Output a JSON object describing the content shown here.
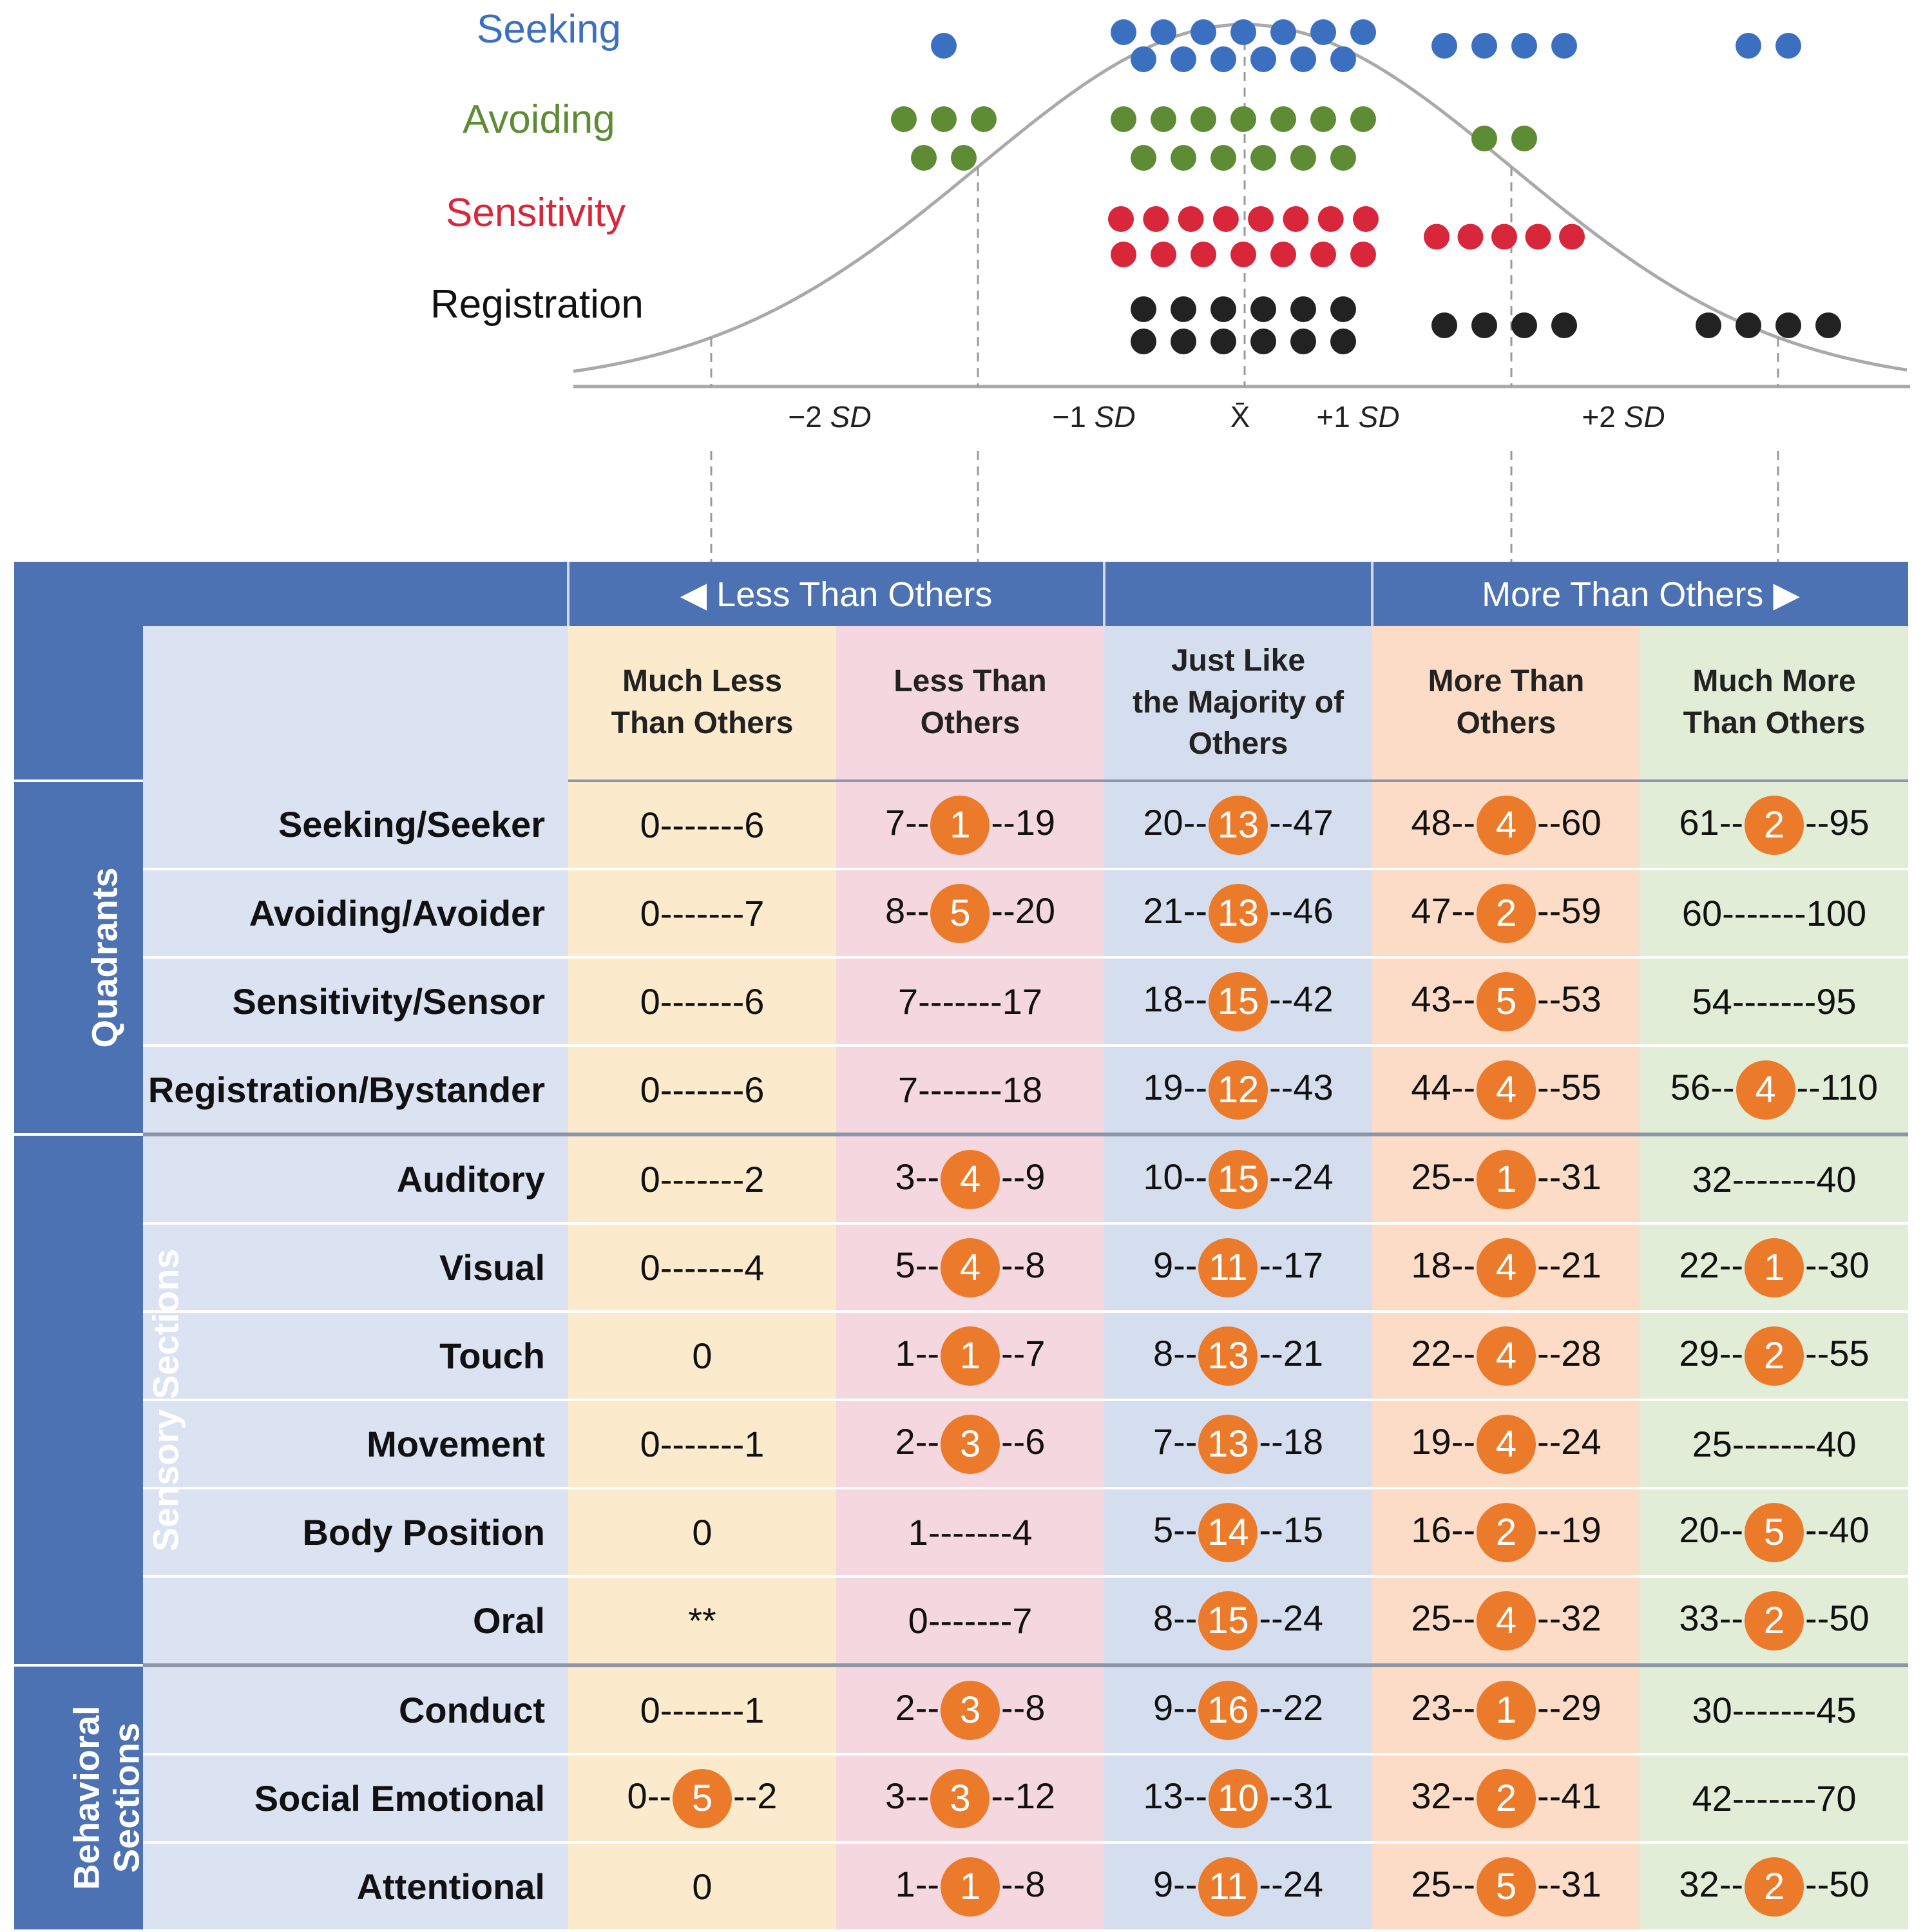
{
  "chart_data": [
    {
      "type": "scatter",
      "title": "",
      "xlabel": "",
      "x_ticks": [
        "−2 SD",
        "−1 SD",
        "X̄",
        "+1 SD",
        "+2 SD"
      ],
      "curve": "normal distribution",
      "series": [
        {
          "name": "Seeking",
          "color": "#3b6fc0",
          "dots_per_range": {
            "lt_minus2": 0,
            "minus2_minus1": 1,
            "minus1_plus1": 13,
            "plus1_plus2": 4,
            "gt_plus2": 2
          }
        },
        {
          "name": "Avoiding",
          "color": "#5e8c34",
          "dots_per_range": {
            "lt_minus2": 0,
            "minus2_minus1": 5,
            "minus1_plus1": 13,
            "plus1_plus2": 2,
            "gt_plus2": 0
          }
        },
        {
          "name": "Sensitivity",
          "color": "#d8263a",
          "dots_per_range": {
            "lt_minus2": 0,
            "minus2_minus1": 0,
            "minus1_plus1": 15,
            "plus1_plus2": 5,
            "gt_plus2": 0
          }
        },
        {
          "name": "Registration",
          "color": "#222222",
          "dots_per_range": {
            "lt_minus2": 0,
            "minus2_minus1": 0,
            "minus1_plus1": 12,
            "plus1_plus2": 4,
            "gt_plus2": 4
          }
        }
      ]
    },
    {
      "type": "table",
      "header_groups": {
        "left": "Less Than Others",
        "right": "More Than Others"
      },
      "columns": [
        "Much Less Than Others",
        "Less Than Others",
        "Just Like the Majority of Others",
        "More Than Others",
        "Much More Than Others"
      ],
      "groups": [
        {
          "name": "Quadrants",
          "rows": [
            {
              "label": "Seeking/Seeker",
              "cells": [
                {
                  "lo": "0",
                  "n": null,
                  "hi": "6"
                },
                {
                  "lo": "7",
                  "n": 1,
                  "hi": "19"
                },
                {
                  "lo": "20",
                  "n": 13,
                  "hi": "47"
                },
                {
                  "lo": "48",
                  "n": 4,
                  "hi": "60"
                },
                {
                  "lo": "61",
                  "n": 2,
                  "hi": "95"
                }
              ]
            },
            {
              "label": "Avoiding/Avoider",
              "cells": [
                {
                  "lo": "0",
                  "n": null,
                  "hi": "7"
                },
                {
                  "lo": "8",
                  "n": 5,
                  "hi": "20"
                },
                {
                  "lo": "21",
                  "n": 13,
                  "hi": "46"
                },
                {
                  "lo": "47",
                  "n": 2,
                  "hi": "59"
                },
                {
                  "lo": "60",
                  "n": null,
                  "hi": "100"
                }
              ]
            },
            {
              "label": "Sensitivity/Sensor",
              "cells": [
                {
                  "lo": "0",
                  "n": null,
                  "hi": "6"
                },
                {
                  "lo": "7",
                  "n": null,
                  "hi": "17"
                },
                {
                  "lo": "18",
                  "n": 15,
                  "hi": "42"
                },
                {
                  "lo": "43",
                  "n": 5,
                  "hi": "53"
                },
                {
                  "lo": "54",
                  "n": null,
                  "hi": "95"
                }
              ]
            },
            {
              "label": "Registration/Bystander",
              "cells": [
                {
                  "lo": "0",
                  "n": null,
                  "hi": "6"
                },
                {
                  "lo": "7",
                  "n": null,
                  "hi": "18"
                },
                {
                  "lo": "19",
                  "n": 12,
                  "hi": "43"
                },
                {
                  "lo": "44",
                  "n": 4,
                  "hi": "55"
                },
                {
                  "lo": "56",
                  "n": 4,
                  "hi": "110"
                }
              ]
            }
          ]
        },
        {
          "name": "Sensory Sections",
          "rows": [
            {
              "label": "Auditory",
              "cells": [
                {
                  "lo": "0",
                  "n": null,
                  "hi": "2"
                },
                {
                  "lo": "3",
                  "n": 4,
                  "hi": "9"
                },
                {
                  "lo": "10",
                  "n": 15,
                  "hi": "24"
                },
                {
                  "lo": "25",
                  "n": 1,
                  "hi": "31"
                },
                {
                  "lo": "32",
                  "n": null,
                  "hi": "40"
                }
              ]
            },
            {
              "label": "Visual",
              "cells": [
                {
                  "lo": "0",
                  "n": null,
                  "hi": "4"
                },
                {
                  "lo": "5",
                  "n": 4,
                  "hi": "8"
                },
                {
                  "lo": "9",
                  "n": 11,
                  "hi": "17"
                },
                {
                  "lo": "18",
                  "n": 4,
                  "hi": "21"
                },
                {
                  "lo": "22",
                  "n": 1,
                  "hi": "30"
                }
              ]
            },
            {
              "label": "Touch",
              "cells": [
                {
                  "single": "0"
                },
                {
                  "lo": "1",
                  "n": 1,
                  "hi": "7"
                },
                {
                  "lo": "8",
                  "n": 13,
                  "hi": "21"
                },
                {
                  "lo": "22",
                  "n": 4,
                  "hi": "28"
                },
                {
                  "lo": "29",
                  "n": 2,
                  "hi": "55"
                }
              ]
            },
            {
              "label": "Movement",
              "cells": [
                {
                  "lo": "0",
                  "n": null,
                  "hi": "1"
                },
                {
                  "lo": "2",
                  "n": 3,
                  "hi": "6"
                },
                {
                  "lo": "7",
                  "n": 13,
                  "hi": "18"
                },
                {
                  "lo": "19",
                  "n": 4,
                  "hi": "24"
                },
                {
                  "lo": "25",
                  "n": null,
                  "hi": "40"
                }
              ]
            },
            {
              "label": "Body Position",
              "cells": [
                {
                  "single": "0"
                },
                {
                  "lo": "1",
                  "n": null,
                  "hi": "4"
                },
                {
                  "lo": "5",
                  "n": 14,
                  "hi": "15"
                },
                {
                  "lo": "16",
                  "n": 2,
                  "hi": "19"
                },
                {
                  "lo": "20",
                  "n": 5,
                  "hi": "40"
                }
              ]
            },
            {
              "label": "Oral",
              "cells": [
                {
                  "single": "**"
                },
                {
                  "lo": "0",
                  "n": null,
                  "hi": "7"
                },
                {
                  "lo": "8",
                  "n": 15,
                  "hi": "24"
                },
                {
                  "lo": "25",
                  "n": 4,
                  "hi": "32"
                },
                {
                  "lo": "33",
                  "n": 2,
                  "hi": "50"
                }
              ]
            }
          ]
        },
        {
          "name": "Behavioral Sections",
          "rows": [
            {
              "label": "Conduct",
              "cells": [
                {
                  "lo": "0",
                  "n": null,
                  "hi": "1"
                },
                {
                  "lo": "2",
                  "n": 3,
                  "hi": "8"
                },
                {
                  "lo": "9",
                  "n": 16,
                  "hi": "22"
                },
                {
                  "lo": "23",
                  "n": 1,
                  "hi": "29"
                },
                {
                  "lo": "30",
                  "n": null,
                  "hi": "45"
                }
              ]
            },
            {
              "label": "Social Emotional",
              "cells": [
                {
                  "lo": "0",
                  "n": 5,
                  "hi": "2"
                },
                {
                  "lo": "3",
                  "n": 3,
                  "hi": "12"
                },
                {
                  "lo": "13",
                  "n": 10,
                  "hi": "31"
                },
                {
                  "lo": "32",
                  "n": 2,
                  "hi": "41"
                },
                {
                  "lo": "42",
                  "n": null,
                  "hi": "70"
                }
              ]
            },
            {
              "label": "Attentional",
              "cells": [
                {
                  "single": "0"
                },
                {
                  "lo": "1",
                  "n": 1,
                  "hi": "8"
                },
                {
                  "lo": "9",
                  "n": 11,
                  "hi": "24"
                },
                {
                  "lo": "25",
                  "n": 5,
                  "hi": "31"
                },
                {
                  "lo": "32",
                  "n": 2,
                  "hi": "50"
                }
              ]
            }
          ]
        }
      ]
    }
  ],
  "legend": {
    "seeking": "Seeking",
    "avoiding": "Avoiding",
    "sensitivity": "Sensitivity",
    "registration": "Registration"
  },
  "axis": {
    "minus2_num": "−2",
    "minus1_num": "−1",
    "mean": "X̄",
    "plus1_num": "+1",
    "plus2_num": "+2",
    "sd_text": "SD"
  },
  "header": {
    "left_arrow": "◀",
    "left_label": "Less Than Others",
    "right_label": "More Than Others",
    "right_arrow": "▶"
  },
  "colors": {
    "header_blue": "#4d72b4",
    "badge_orange": "#ec7a2b"
  }
}
